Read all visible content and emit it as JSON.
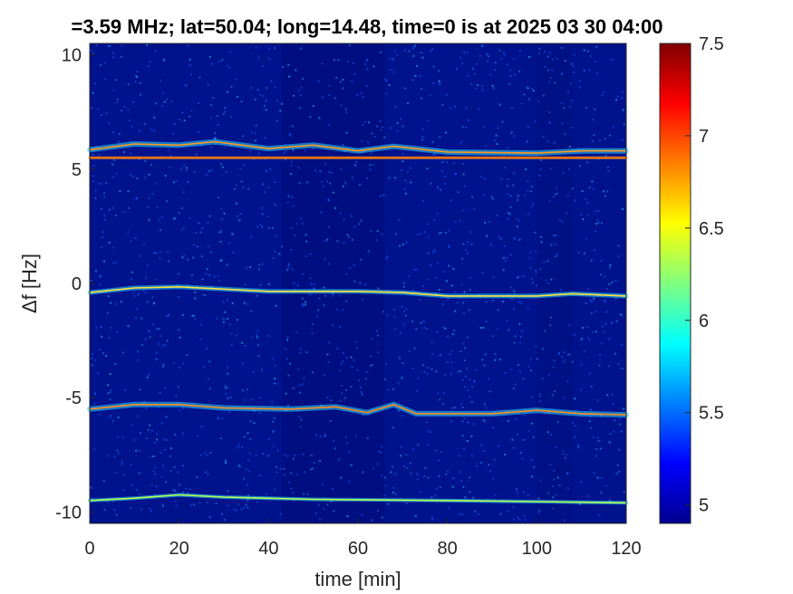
{
  "chart_data": {
    "type": "heatmap",
    "title": "=3.59 MHz;  lat=50.04; long=14.48, time=0 is at 2025 03 30 04:00",
    "xlabel": "time [min]",
    "ylabel": "Δf [Hz]",
    "xlim": [
      0,
      120
    ],
    "ylim": [
      -10.5,
      10.5
    ],
    "xticks": [
      0,
      20,
      40,
      60,
      80,
      100,
      120
    ],
    "yticks": [
      -10,
      -5,
      0,
      5,
      10
    ],
    "colorbar": {
      "range": [
        4.9,
        7.5
      ],
      "ticks": [
        5,
        5.5,
        6,
        6.5,
        7,
        7.5
      ],
      "colormap": "jet"
    },
    "grid": false,
    "series": [
      {
        "points": [
          [
            0,
            5.85
          ],
          [
            10,
            6.1
          ],
          [
            20,
            6.05
          ],
          [
            28,
            6.2
          ],
          [
            40,
            5.9
          ],
          [
            50,
            6.05
          ],
          [
            60,
            5.8
          ],
          [
            68,
            6.0
          ],
          [
            80,
            5.75
          ],
          [
            100,
            5.7
          ],
          [
            110,
            5.8
          ],
          [
            120,
            5.8
          ]
        ]
      },
      {
        "points": [
          [
            0,
            5.5
          ],
          [
            120,
            5.5
          ]
        ]
      },
      {
        "points": [
          [
            0,
            -0.4
          ],
          [
            10,
            -0.2
          ],
          [
            20,
            -0.15
          ],
          [
            30,
            -0.25
          ],
          [
            40,
            -0.35
          ],
          [
            60,
            -0.35
          ],
          [
            70,
            -0.4
          ],
          [
            80,
            -0.55
          ],
          [
            100,
            -0.55
          ],
          [
            108,
            -0.45
          ],
          [
            120,
            -0.55
          ]
        ]
      },
      {
        "points": [
          [
            0,
            -5.5
          ],
          [
            10,
            -5.3
          ],
          [
            20,
            -5.3
          ],
          [
            30,
            -5.45
          ],
          [
            45,
            -5.5
          ],
          [
            55,
            -5.4
          ],
          [
            62,
            -5.65
          ],
          [
            68,
            -5.3
          ],
          [
            73,
            -5.7
          ],
          [
            90,
            -5.7
          ],
          [
            100,
            -5.55
          ],
          [
            110,
            -5.7
          ],
          [
            120,
            -5.75
          ]
        ]
      },
      {
        "points": [
          [
            0,
            -9.5
          ],
          [
            10,
            -9.4
          ],
          [
            20,
            -9.25
          ],
          [
            30,
            -9.35
          ],
          [
            50,
            -9.45
          ],
          [
            80,
            -9.5
          ],
          [
            100,
            -9.55
          ],
          [
            120,
            -9.6
          ]
        ]
      }
    ]
  }
}
